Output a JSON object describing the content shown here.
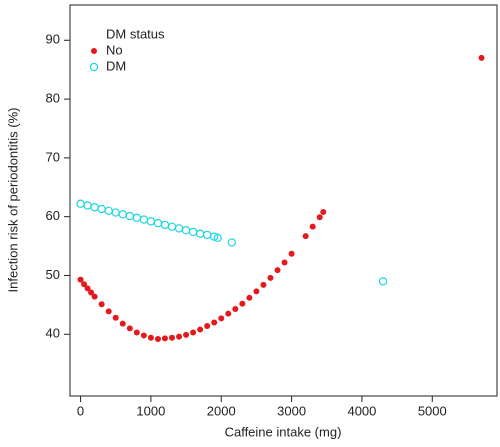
{
  "chart_data": {
    "type": "scatter",
    "x_label": "Caffeine intake (mg)",
    "y_label": "Infection risk of periodontitis (%)",
    "legend_title": "DM status",
    "legend": "upper left",
    "xlim": [
      -150,
      5920
    ],
    "ylim": [
      29.5,
      96
    ],
    "xticks": [
      0,
      1000,
      2000,
      3000,
      4000,
      5000
    ],
    "yticks": [
      40,
      50,
      60,
      70,
      80,
      90
    ],
    "series": [
      {
        "name": "No",
        "color": "#e3191c",
        "marker": "filled",
        "x": [
          0,
          50,
          100,
          150,
          200,
          300,
          400,
          500,
          600,
          700,
          800,
          900,
          1000,
          1100,
          1200,
          1300,
          1400,
          1500,
          1600,
          1700,
          1800,
          1900,
          2000,
          2100,
          2200,
          2300,
          2400,
          2500,
          2600,
          2700,
          2800,
          2900,
          3000,
          3200,
          3300,
          3400,
          3450,
          5700
        ],
        "values": [
          49.3,
          48.5,
          47.8,
          47.1,
          46.4,
          45.1,
          43.9,
          42.8,
          41.8,
          41.0,
          40.3,
          39.8,
          39.4,
          39.2,
          39.3,
          39.4,
          39.6,
          39.9,
          40.3,
          40.8,
          41.4,
          42.0,
          42.7,
          43.5,
          44.3,
          45.2,
          46.2,
          47.3,
          48.4,
          49.6,
          50.9,
          52.2,
          53.7,
          56.7,
          58.3,
          59.9,
          60.8,
          87
        ]
      },
      {
        "name": "DM",
        "color": "#1ed6e2",
        "marker": "open",
        "x": [
          0,
          100,
          200,
          300,
          400,
          500,
          600,
          700,
          800,
          900,
          1000,
          1100,
          1200,
          1300,
          1400,
          1500,
          1600,
          1700,
          1800,
          1900,
          1950,
          2150,
          4300
        ],
        "values": [
          62.2,
          61.9,
          61.6,
          61.3,
          61.0,
          60.7,
          60.4,
          60.1,
          59.8,
          59.5,
          59.2,
          58.9,
          58.6,
          58.3,
          58.0,
          57.7,
          57.4,
          57.1,
          56.9,
          56.6,
          56.4,
          55.6,
          49.0
        ]
      }
    ]
  }
}
